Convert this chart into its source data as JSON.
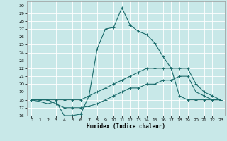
{
  "xlabel": "Humidex (Indice chaleur)",
  "bg_color": "#c8e8e8",
  "grid_color": "#ffffff",
  "line_color": "#1a6b6b",
  "xlim": [
    -0.5,
    23.5
  ],
  "ylim": [
    16,
    30.5
  ],
  "xticks": [
    0,
    1,
    2,
    3,
    4,
    5,
    6,
    7,
    8,
    9,
    10,
    11,
    12,
    13,
    14,
    15,
    16,
    17,
    18,
    19,
    20,
    21,
    22,
    23
  ],
  "yticks": [
    16,
    17,
    18,
    19,
    20,
    21,
    22,
    23,
    24,
    25,
    26,
    27,
    28,
    29,
    30
  ],
  "series1_x": [
    0,
    1,
    2,
    3,
    4,
    5,
    6,
    7,
    8,
    9,
    10,
    11,
    12,
    13,
    14,
    15,
    16,
    17,
    18,
    19,
    20,
    21,
    22,
    23
  ],
  "series1_y": [
    18,
    17.8,
    17.5,
    17.8,
    16,
    16,
    16.2,
    18.5,
    24.5,
    27,
    27.2,
    29.7,
    27.5,
    26.7,
    26.3,
    25.2,
    23.5,
    22,
    18.5,
    18,
    18,
    18,
    18,
    18
  ],
  "series2_x": [
    0,
    1,
    2,
    3,
    4,
    5,
    6,
    7,
    8,
    9,
    10,
    11,
    12,
    13,
    14,
    15,
    16,
    17,
    18,
    19,
    20,
    21,
    22,
    23
  ],
  "series2_y": [
    18,
    18,
    18,
    18,
    18,
    18,
    18,
    18.5,
    19,
    19.5,
    20,
    20.5,
    21,
    21.5,
    22,
    22,
    22,
    22,
    22,
    22,
    20,
    19,
    18.5,
    18
  ],
  "series3_x": [
    0,
    1,
    2,
    3,
    4,
    5,
    6,
    7,
    8,
    9,
    10,
    11,
    12,
    13,
    14,
    15,
    16,
    17,
    18,
    19,
    20,
    21,
    22,
    23
  ],
  "series3_y": [
    18,
    18,
    18,
    17.5,
    17,
    17,
    17,
    17.2,
    17.5,
    18,
    18.5,
    19,
    19.5,
    19.5,
    20,
    20,
    20.5,
    20.5,
    21,
    21,
    19,
    18.5,
    18,
    18
  ]
}
